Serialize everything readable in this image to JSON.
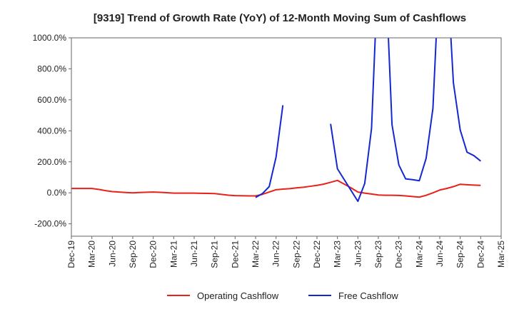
{
  "chart_data": {
    "type": "line",
    "title": "[9319]  Trend of Growth Rate (YoY) of 12-Month Moving Sum of Cashflows",
    "xlabel": "",
    "ylabel": "",
    "ylim": [
      -280,
      1000
    ],
    "yticks": [
      1000,
      800,
      600,
      400,
      200,
      0,
      -200
    ],
    "ytick_labels": [
      "1000.0%",
      "800.0%",
      "600.0%",
      "400.0%",
      "200.0%",
      "0.0%",
      "-200.0%"
    ],
    "xlim": [
      "2019-12",
      "2025-03"
    ],
    "xtick_labels": [
      "Dec-19",
      "Mar-20",
      "Jun-20",
      "Sep-20",
      "Dec-20",
      "Mar-21",
      "Jun-21",
      "Sep-21",
      "Dec-21",
      "Mar-22",
      "Jun-22",
      "Sep-22",
      "Dec-22",
      "Mar-23",
      "Jun-23",
      "Sep-23",
      "Dec-23",
      "Mar-24",
      "Jun-24",
      "Sep-24",
      "Dec-24",
      "Mar-25"
    ],
    "grid": true,
    "legend_position": "bottom",
    "series": [
      {
        "name": "Operating Cashflow",
        "color": "#e8211b",
        "points": [
          [
            "2019-12",
            28
          ],
          [
            "2020-01",
            28
          ],
          [
            "2020-02",
            28
          ],
          [
            "2020-03",
            28
          ],
          [
            "2020-04",
            22
          ],
          [
            "2020-05",
            14
          ],
          [
            "2020-06",
            8
          ],
          [
            "2020-07",
            5
          ],
          [
            "2020-08",
            2
          ],
          [
            "2020-09",
            0
          ],
          [
            "2020-10",
            2
          ],
          [
            "2020-11",
            4
          ],
          [
            "2020-12",
            5
          ],
          [
            "2021-01",
            3
          ],
          [
            "2021-02",
            1
          ],
          [
            "2021-03",
            -2
          ],
          [
            "2021-04",
            -2
          ],
          [
            "2021-05",
            -2
          ],
          [
            "2021-06",
            -2
          ],
          [
            "2021-07",
            -3
          ],
          [
            "2021-08",
            -4
          ],
          [
            "2021-09",
            -5
          ],
          [
            "2021-10",
            -10
          ],
          [
            "2021-11",
            -15
          ],
          [
            "2021-12",
            -18
          ],
          [
            "2022-01",
            -19
          ],
          [
            "2022-02",
            -20
          ],
          [
            "2022-03",
            -20
          ],
          [
            "2022-04",
            -10
          ],
          [
            "2022-05",
            5
          ],
          [
            "2022-06",
            20
          ],
          [
            "2022-07",
            24
          ],
          [
            "2022-08",
            27
          ],
          [
            "2022-09",
            32
          ],
          [
            "2022-10",
            36
          ],
          [
            "2022-11",
            42
          ],
          [
            "2022-12",
            48
          ],
          [
            "2023-01",
            56
          ],
          [
            "2023-02",
            68
          ],
          [
            "2023-03",
            80
          ],
          [
            "2023-04",
            56
          ],
          [
            "2023-05",
            32
          ],
          [
            "2023-06",
            5
          ],
          [
            "2023-07",
            -2
          ],
          [
            "2023-08",
            -8
          ],
          [
            "2023-09",
            -14
          ],
          [
            "2023-10",
            -16
          ],
          [
            "2023-11",
            -16
          ],
          [
            "2023-12",
            -17
          ],
          [
            "2024-01",
            -20
          ],
          [
            "2024-02",
            -24
          ],
          [
            "2024-03",
            -28
          ],
          [
            "2024-04",
            -16
          ],
          [
            "2024-05",
            0
          ],
          [
            "2024-06",
            18
          ],
          [
            "2024-07",
            28
          ],
          [
            "2024-08",
            40
          ],
          [
            "2024-09",
            55
          ],
          [
            "2024-10",
            52
          ],
          [
            "2024-11",
            50
          ],
          [
            "2024-12",
            48
          ]
        ]
      },
      {
        "name": "Free Cashflow",
        "color": "#1428d2",
        "segments": [
          [
            [
              "2022-03",
              -30
            ],
            [
              "2022-04",
              -5
            ],
            [
              "2022-05",
              40
            ],
            [
              "2022-06",
              230
            ],
            [
              "2022-07",
              565
            ]
          ],
          [
            [
              "2023-02",
              445
            ],
            [
              "2023-03",
              155
            ],
            [
              "2023-04",
              85
            ],
            [
              "2023-05",
              15
            ],
            [
              "2023-06",
              -55
            ],
            [
              "2023-07",
              60
            ],
            [
              "2023-08",
              415
            ],
            [
              "2023-09",
              1500
            ],
            [
              "2023-10",
              1500
            ],
            [
              "2023-11",
              440
            ],
            [
              "2023-12",
              180
            ],
            [
              "2024-01",
              90
            ],
            [
              "2024-02",
              85
            ],
            [
              "2024-03",
              78
            ],
            [
              "2024-04",
              222
            ],
            [
              "2024-05",
              545
            ],
            [
              "2024-06",
              1500
            ],
            [
              "2024-07",
              1500
            ],
            [
              "2024-08",
              710
            ],
            [
              "2024-09",
              405
            ],
            [
              "2024-10",
              262
            ],
            [
              "2024-11",
              240
            ],
            [
              "2024-12",
              205
            ]
          ]
        ]
      }
    ]
  }
}
